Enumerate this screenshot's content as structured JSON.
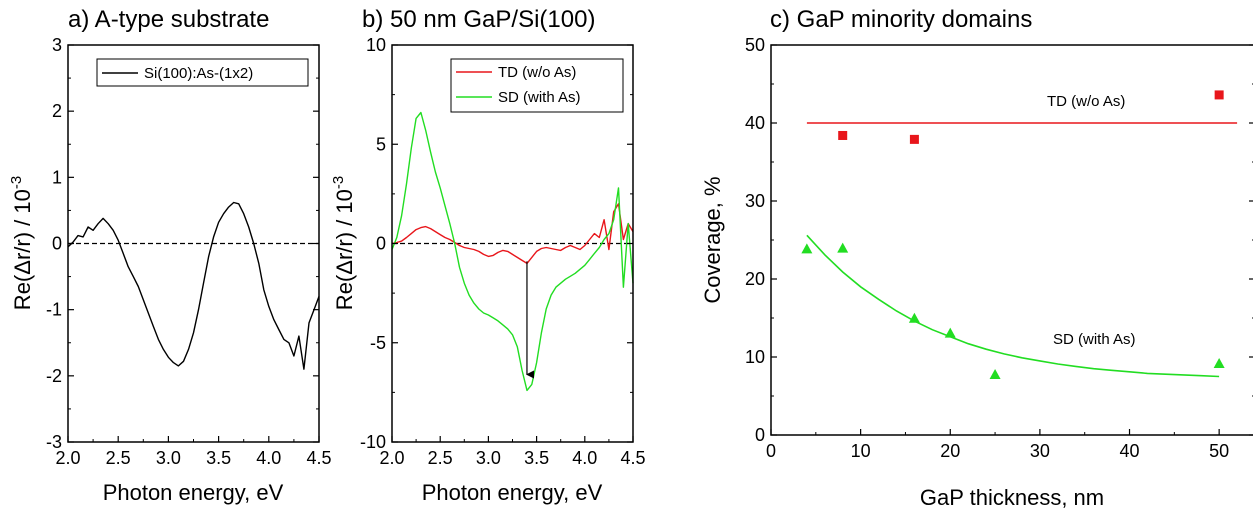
{
  "chart_data": [
    {
      "type": "line",
      "title": "a) A-type substrate",
      "xlabel": "Photon energy, eV",
      "ylabel": "Re(Δr/r) / 10",
      "ylabel_exp": "-3",
      "xlim": [
        2.0,
        4.5
      ],
      "ylim": [
        -3,
        3
      ],
      "xticks": [
        2.0,
        2.5,
        3.0,
        3.5,
        4.0,
        4.5
      ],
      "xtick_labels": [
        "2.0",
        "2.5",
        "3.0",
        "3.5",
        "4.0",
        "4.5"
      ],
      "yticks": [
        -3,
        -2,
        -1,
        0,
        1,
        2,
        3
      ],
      "ytick_labels": [
        "-3",
        "-2",
        "-1",
        "0",
        "1",
        "2",
        "3"
      ],
      "zero_line": true,
      "legend": "top-right",
      "series": [
        {
          "name": "Si(100):As-(1x2)",
          "color": "#000000",
          "x": [
            2.0,
            2.05,
            2.1,
            2.15,
            2.2,
            2.25,
            2.3,
            2.35,
            2.4,
            2.45,
            2.5,
            2.55,
            2.6,
            2.65,
            2.7,
            2.75,
            2.8,
            2.85,
            2.9,
            2.95,
            3.0,
            3.05,
            3.1,
            3.15,
            3.2,
            3.25,
            3.3,
            3.35,
            3.4,
            3.45,
            3.5,
            3.55,
            3.6,
            3.65,
            3.7,
            3.75,
            3.8,
            3.85,
            3.9,
            3.95,
            4.0,
            4.05,
            4.1,
            4.15,
            4.2,
            4.25,
            4.3,
            4.35,
            4.4,
            4.45,
            4.5
          ],
          "y": [
            -0.05,
            0.02,
            0.12,
            0.1,
            0.25,
            0.2,
            0.3,
            0.38,
            0.3,
            0.2,
            0.05,
            -0.15,
            -0.35,
            -0.5,
            -0.65,
            -0.85,
            -1.05,
            -1.25,
            -1.45,
            -1.6,
            -1.72,
            -1.8,
            -1.85,
            -1.78,
            -1.6,
            -1.35,
            -1.0,
            -0.6,
            -0.2,
            0.1,
            0.32,
            0.45,
            0.55,
            0.62,
            0.6,
            0.45,
            0.25,
            0.0,
            -0.3,
            -0.7,
            -0.95,
            -1.15,
            -1.3,
            -1.45,
            -1.5,
            -1.7,
            -1.4,
            -1.9,
            -1.2,
            -1.0,
            -0.8
          ]
        }
      ]
    },
    {
      "type": "line",
      "title": "b) 50 nm GaP/Si(100)",
      "xlabel": "Photon energy, eV",
      "ylabel": "Re(Δr/r) / 10",
      "ylabel_exp": "-3",
      "xlim": [
        2.0,
        4.5
      ],
      "ylim": [
        -10,
        10
      ],
      "xticks": [
        2.0,
        2.5,
        3.0,
        3.5,
        4.0,
        4.5
      ],
      "xtick_labels": [
        "2.0",
        "2.5",
        "3.0",
        "3.5",
        "4.0",
        "4.5"
      ],
      "yticks": [
        -10,
        -5,
        0,
        5,
        10
      ],
      "ytick_labels": [
        "-10",
        "-5",
        "0",
        "5",
        "10"
      ],
      "zero_line": true,
      "legend": "top-right",
      "arrow": {
        "x": 3.4,
        "y_from": -0.9,
        "y_to": -6.6
      },
      "series": [
        {
          "name": "TD (w/o As)",
          "color": "#e8161b",
          "x": [
            2.0,
            2.05,
            2.1,
            2.15,
            2.2,
            2.25,
            2.3,
            2.35,
            2.4,
            2.45,
            2.5,
            2.55,
            2.6,
            2.65,
            2.7,
            2.75,
            2.8,
            2.85,
            2.9,
            2.95,
            3.0,
            3.05,
            3.1,
            3.15,
            3.2,
            3.25,
            3.3,
            3.35,
            3.4,
            3.45,
            3.5,
            3.55,
            3.6,
            3.65,
            3.7,
            3.75,
            3.8,
            3.85,
            3.9,
            3.95,
            4.0,
            4.05,
            4.1,
            4.15,
            4.2,
            4.25,
            4.3,
            4.35,
            4.4,
            4.45,
            4.5
          ],
          "y": [
            0.0,
            0.05,
            0.12,
            0.3,
            0.5,
            0.7,
            0.8,
            0.85,
            0.75,
            0.6,
            0.45,
            0.3,
            0.2,
            0.05,
            -0.1,
            -0.2,
            -0.25,
            -0.3,
            -0.4,
            -0.55,
            -0.65,
            -0.6,
            -0.45,
            -0.35,
            -0.4,
            -0.55,
            -0.7,
            -0.85,
            -1.0,
            -0.7,
            -0.4,
            -0.25,
            -0.2,
            -0.25,
            -0.3,
            -0.35,
            -0.2,
            -0.1,
            -0.2,
            -0.3,
            -0.1,
            0.2,
            0.5,
            0.3,
            1.2,
            -0.3,
            1.6,
            2.0,
            0.2,
            1.0,
            0.6
          ]
        },
        {
          "name": "SD (with As)",
          "color": "#22dd22",
          "x": [
            2.0,
            2.05,
            2.1,
            2.15,
            2.2,
            2.25,
            2.3,
            2.35,
            2.4,
            2.45,
            2.5,
            2.55,
            2.6,
            2.65,
            2.7,
            2.75,
            2.8,
            2.85,
            2.9,
            2.95,
            3.0,
            3.05,
            3.1,
            3.15,
            3.2,
            3.25,
            3.3,
            3.35,
            3.4,
            3.45,
            3.5,
            3.55,
            3.6,
            3.65,
            3.7,
            3.75,
            3.8,
            3.85,
            3.9,
            3.95,
            4.0,
            4.05,
            4.1,
            4.15,
            4.2,
            4.25,
            4.3,
            4.35,
            4.4,
            4.45,
            4.5
          ],
          "y": [
            -0.3,
            0.3,
            1.4,
            3.0,
            4.8,
            6.3,
            6.6,
            5.7,
            4.6,
            3.6,
            2.8,
            1.9,
            1.0,
            0.0,
            -1.2,
            -2.0,
            -2.6,
            -3.0,
            -3.3,
            -3.5,
            -3.6,
            -3.75,
            -3.9,
            -4.1,
            -4.3,
            -4.6,
            -5.2,
            -6.4,
            -7.4,
            -7.1,
            -6.0,
            -4.5,
            -3.3,
            -2.6,
            -2.2,
            -2.0,
            -1.8,
            -1.65,
            -1.5,
            -1.3,
            -1.1,
            -0.8,
            -0.5,
            -0.2,
            0.2,
            0.5,
            1.2,
            2.8,
            -2.2,
            1.0,
            -2.0
          ]
        }
      ]
    },
    {
      "type": "scatter",
      "title": "c) GaP minority domains",
      "xlabel": "GaP thickness, nm",
      "ylabel": "Coverage, %",
      "xlim": [
        0,
        54
      ],
      "ylim": [
        0,
        50
      ],
      "xticks": [
        0,
        10,
        20,
        30,
        40,
        50
      ],
      "xtick_labels": [
        "0",
        "10",
        "20",
        "30",
        "40",
        "50"
      ],
      "yticks": [
        0,
        10,
        20,
        30,
        40,
        50
      ],
      "ytick_labels": [
        "0",
        "10",
        "20",
        "30",
        "40",
        "50"
      ],
      "series": [
        {
          "name": "TD (w/o As)",
          "color": "#e8161b",
          "marker": "square",
          "x": [
            8,
            16,
            50
          ],
          "y": [
            38.4,
            37.9,
            43.6
          ],
          "fit": {
            "x": [
              4,
              52
            ],
            "y": [
              40,
              40
            ]
          }
        },
        {
          "name": "SD (with As)",
          "color": "#22dd22",
          "marker": "triangle",
          "x": [
            4,
            8,
            16,
            20,
            25,
            50
          ],
          "y": [
            23.8,
            23.9,
            14.9,
            13.0,
            7.7,
            9.1
          ],
          "fit": {
            "x": [
              4,
              6,
              8,
              10,
              12,
              14,
              16,
              18,
              20,
              22,
              24,
              26,
              28,
              30,
              32,
              34,
              36,
              38,
              40,
              42,
              44,
              46,
              48,
              50
            ],
            "y": [
              25.6,
              23.1,
              20.9,
              19.0,
              17.4,
              15.9,
              14.6,
              13.5,
              12.6,
              11.7,
              11.0,
              10.4,
              9.9,
              9.5,
              9.1,
              8.8,
              8.5,
              8.3,
              8.1,
              7.9,
              7.8,
              7.7,
              7.6,
              7.5
            ]
          }
        }
      ],
      "annotations": [
        "TD (w/o As)",
        "SD (with As)"
      ]
    }
  ]
}
